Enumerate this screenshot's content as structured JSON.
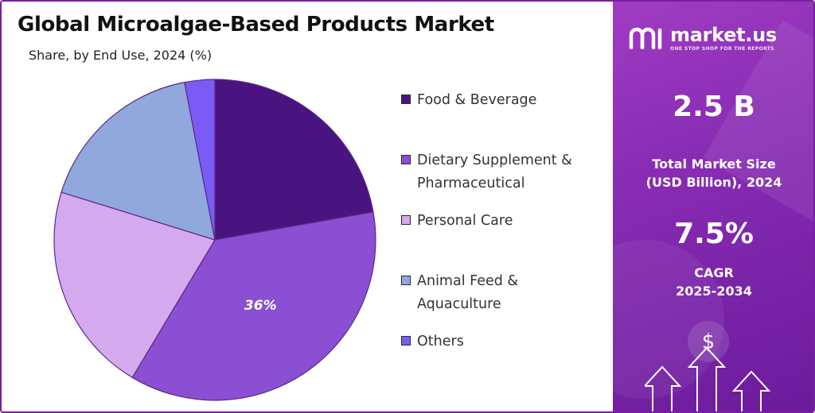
{
  "chart_data": {
    "type": "pie",
    "title": "Global Microalgae-Based Products Market",
    "subtitle": "Share, by End Use, 2024 (%)",
    "categories": [
      "Food & Beverage",
      "Dietary Supplement & Pharmaceutical",
      "Personal Care",
      "Animal Feed & Aquaculture",
      "Others"
    ],
    "values": [
      22,
      36,
      21,
      17,
      3
    ],
    "colors": [
      "#4a1480",
      "#8a4fd2",
      "#d4a9ee",
      "#90a8dc",
      "#7a5cf4"
    ],
    "data_labels": [
      "",
      "36%",
      "",
      "",
      ""
    ],
    "legend_position": "right"
  },
  "legend": {
    "items": [
      {
        "label": "Food & Beverage",
        "color": "#4a1480"
      },
      {
        "label": "Dietary Supplement &\nPharmaceutical",
        "color": "#8a4fd2"
      },
      {
        "label": "Personal Care",
        "color": "#d4a9ee"
      },
      {
        "label": "Animal Feed &\nAquaculture",
        "color": "#90a8dc"
      },
      {
        "label": "Others",
        "color": "#7a5cf4"
      }
    ]
  },
  "brand": {
    "name": "market.us",
    "tagline": "ONE STOP SHOP FOR THE REPORTS"
  },
  "stats": {
    "market_size_value": "2.5 B",
    "market_size_label": "Total Market Size\n(USD Billion), 2024",
    "cagr_value": "7.5%",
    "cagr_label": "CAGR\n2025-2034"
  },
  "icons": {
    "logo": "market-us-logo",
    "growth": "dollar-growth-arrows-icon"
  }
}
